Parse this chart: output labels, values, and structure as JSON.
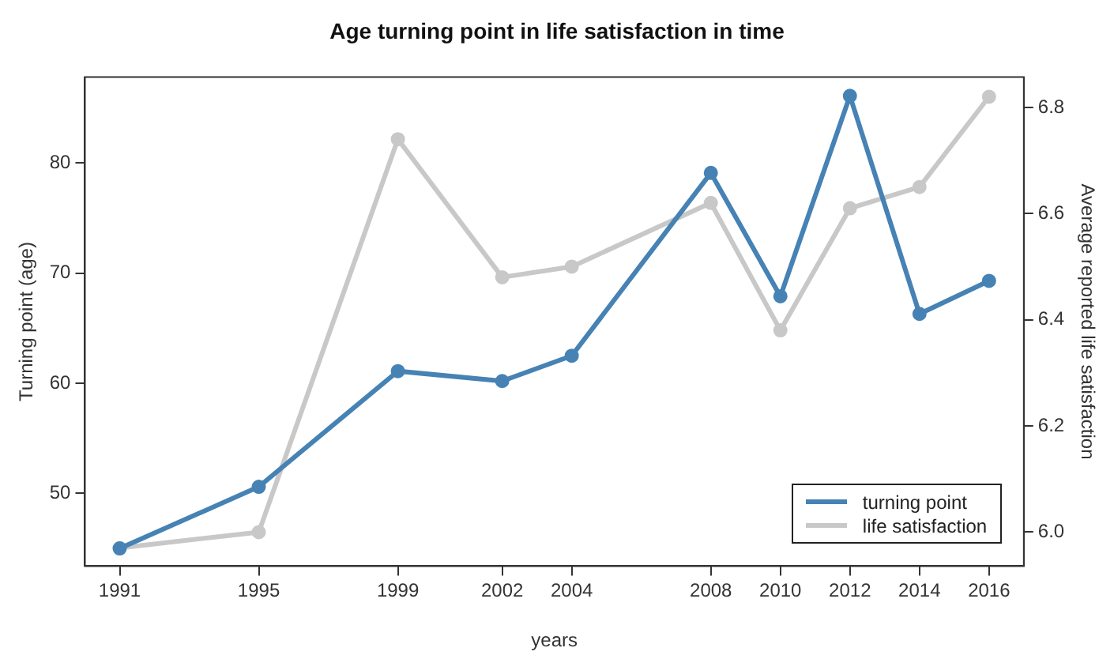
{
  "chart_data": {
    "type": "line",
    "title": "Age turning point in life satisfaction in time",
    "xlabel": "years",
    "ylabel": "Turning point (age)",
    "y2label": "Average reported life satisfaction",
    "x": [
      1991,
      1995,
      1999,
      2002,
      2004,
      2008,
      2010,
      2012,
      2014,
      2016
    ],
    "series": [
      {
        "name": "turning point",
        "color": "#4682b4",
        "values": [
          45,
          50.6,
          61.1,
          60.2,
          62.5,
          79.1,
          67.9,
          86.1,
          66.3,
          69.3
        ]
      },
      {
        "name": "life satisfaction",
        "color": "#c8c8c8",
        "axis": "y2",
        "values": [
          5.97,
          6.0,
          6.74,
          6.48,
          6.5,
          6.62,
          6.38,
          6.61,
          6.65,
          6.82
        ]
      }
    ],
    "xlim": [
      1990,
      2017
    ],
    "xticks": [
      1991,
      1995,
      1999,
      2002,
      2004,
      2008,
      2010,
      2012,
      2014,
      2016
    ],
    "ylim": [
      43.4,
      87.8
    ],
    "yticks": [
      50,
      60,
      70,
      80
    ],
    "y2lim": [
      5.936,
      6.857
    ],
    "y2ticks": [
      {
        "value": 6.0,
        "label": "6.0"
      },
      {
        "value": 6.2,
        "label": "6.2"
      },
      {
        "value": 6.4,
        "label": "6.4"
      },
      {
        "value": 6.6,
        "label": "6.6"
      },
      {
        "value": 6.8,
        "label": "6.8"
      }
    ],
    "grid": false,
    "legend": "bottom right",
    "marker": "circle",
    "line_style": "solid"
  }
}
